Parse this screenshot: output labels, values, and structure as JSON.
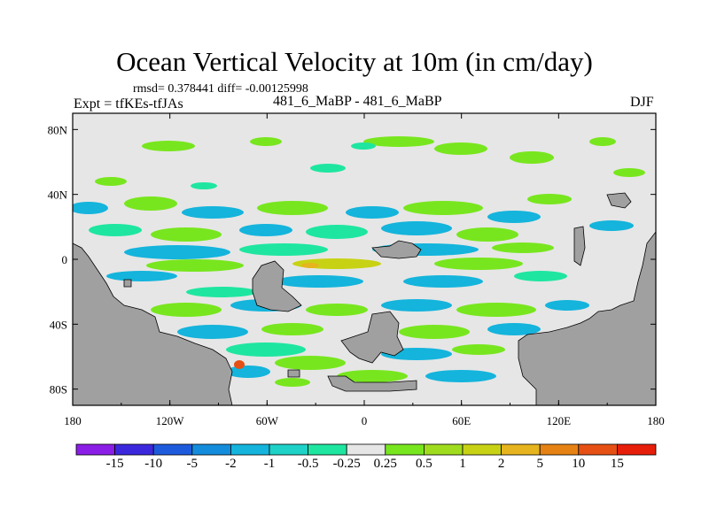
{
  "title": "Ocean Vertical Velocity at 10m (in cm/day)",
  "stats": "rmsd= 0.378441 diff= -0.00125998",
  "experiment": "Expt = tfKEs-tfJAs",
  "case_label": "481_6_MaBP - 481_6_MaBP",
  "season": "DJF",
  "chart_data": {
    "type": "heatmap",
    "x_ticks": [
      "180",
      "120W",
      "60W",
      "0",
      "60E",
      "120E",
      "180"
    ],
    "y_ticks": [
      "80N",
      "40N",
      "0",
      "40S",
      "80S"
    ],
    "colorbar": {
      "labels": [
        "-15",
        "-10",
        "-5",
        "-2",
        "-1",
        "-0.5",
        "-0.25",
        "0.25",
        "0.5",
        "1",
        "2",
        "5",
        "10",
        "15"
      ],
      "colors": [
        "#8a1ee6",
        "#3c28dc",
        "#1e5adc",
        "#148cdc",
        "#14b4dc",
        "#1ed2c8",
        "#1ee6a0",
        "#e6e6e6",
        "#78e61e",
        "#a0dc1e",
        "#c8d214",
        "#e6b41e",
        "#e68214",
        "#e65014",
        "#e61e0a"
      ]
    },
    "ocean_background": "#e6e6e6",
    "land_color": "#a0a0a0"
  }
}
